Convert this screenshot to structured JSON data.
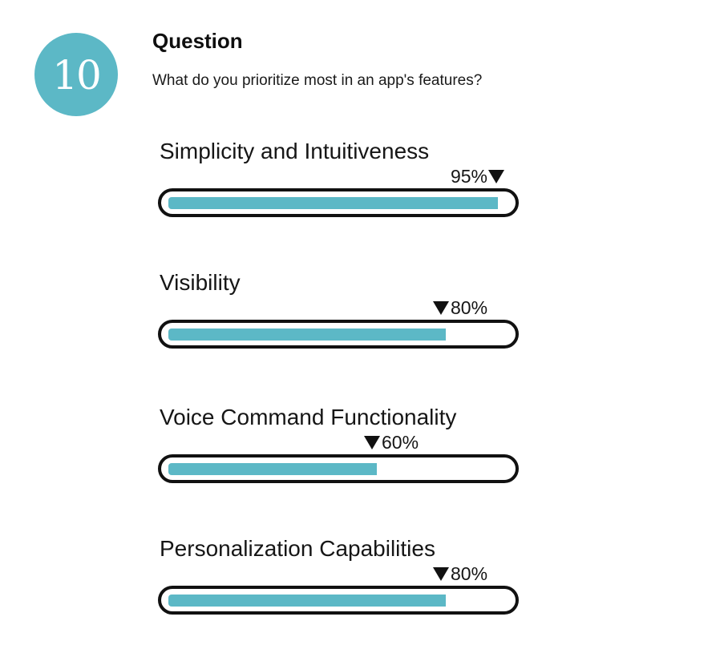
{
  "badge": {
    "number": "10",
    "color": "#5cb8c6"
  },
  "question": {
    "title": "Question",
    "text": "What do you prioritize most in an app's features?"
  },
  "chart_data": {
    "type": "bar",
    "orientation": "horizontal",
    "style": "progress-bars",
    "bar_color": "#5cb8c6",
    "categories": [
      "Simplicity and Intuitiveness",
      "Visibility",
      "Voice Command Functionality",
      "Personalization Capabilities"
    ],
    "values": [
      95,
      80,
      60,
      80
    ],
    "value_labels": [
      "95%",
      "80%",
      "60%",
      "80%"
    ],
    "marker_side": [
      "right",
      "left",
      "left",
      "left"
    ],
    "ylim": [
      0,
      100
    ]
  }
}
